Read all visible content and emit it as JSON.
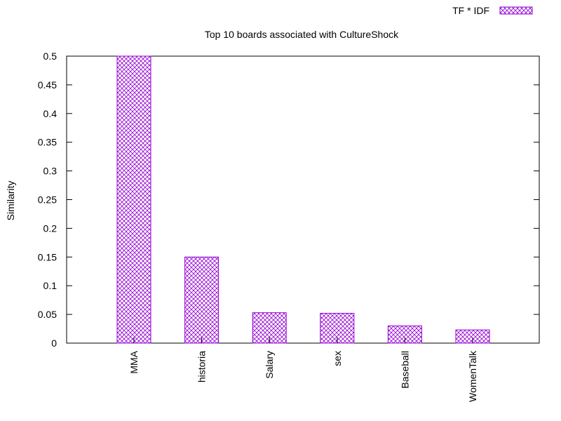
{
  "chart_data": {
    "type": "bar",
    "title": "Top 10 boards associated with CultureShock",
    "xlabel": "",
    "ylabel": "Similarity",
    "ylim": [
      0,
      0.5
    ],
    "yticks": [
      "0",
      "0.05",
      "0.1",
      "0.15",
      "0.2",
      "0.25",
      "0.3",
      "0.35",
      "0.4",
      "0.45",
      "0.5"
    ],
    "categories": [
      "MMA",
      "historia",
      "Salary",
      "sex",
      "Baseball",
      "WomenTalk"
    ],
    "series": [
      {
        "name": "TF * IDF",
        "values": [
          0.5,
          0.15,
          0.053,
          0.052,
          0.03,
          0.023
        ],
        "color": "#9400d3",
        "pattern": "crosshatch"
      }
    ],
    "legend_position": "top-right",
    "grid": false
  }
}
